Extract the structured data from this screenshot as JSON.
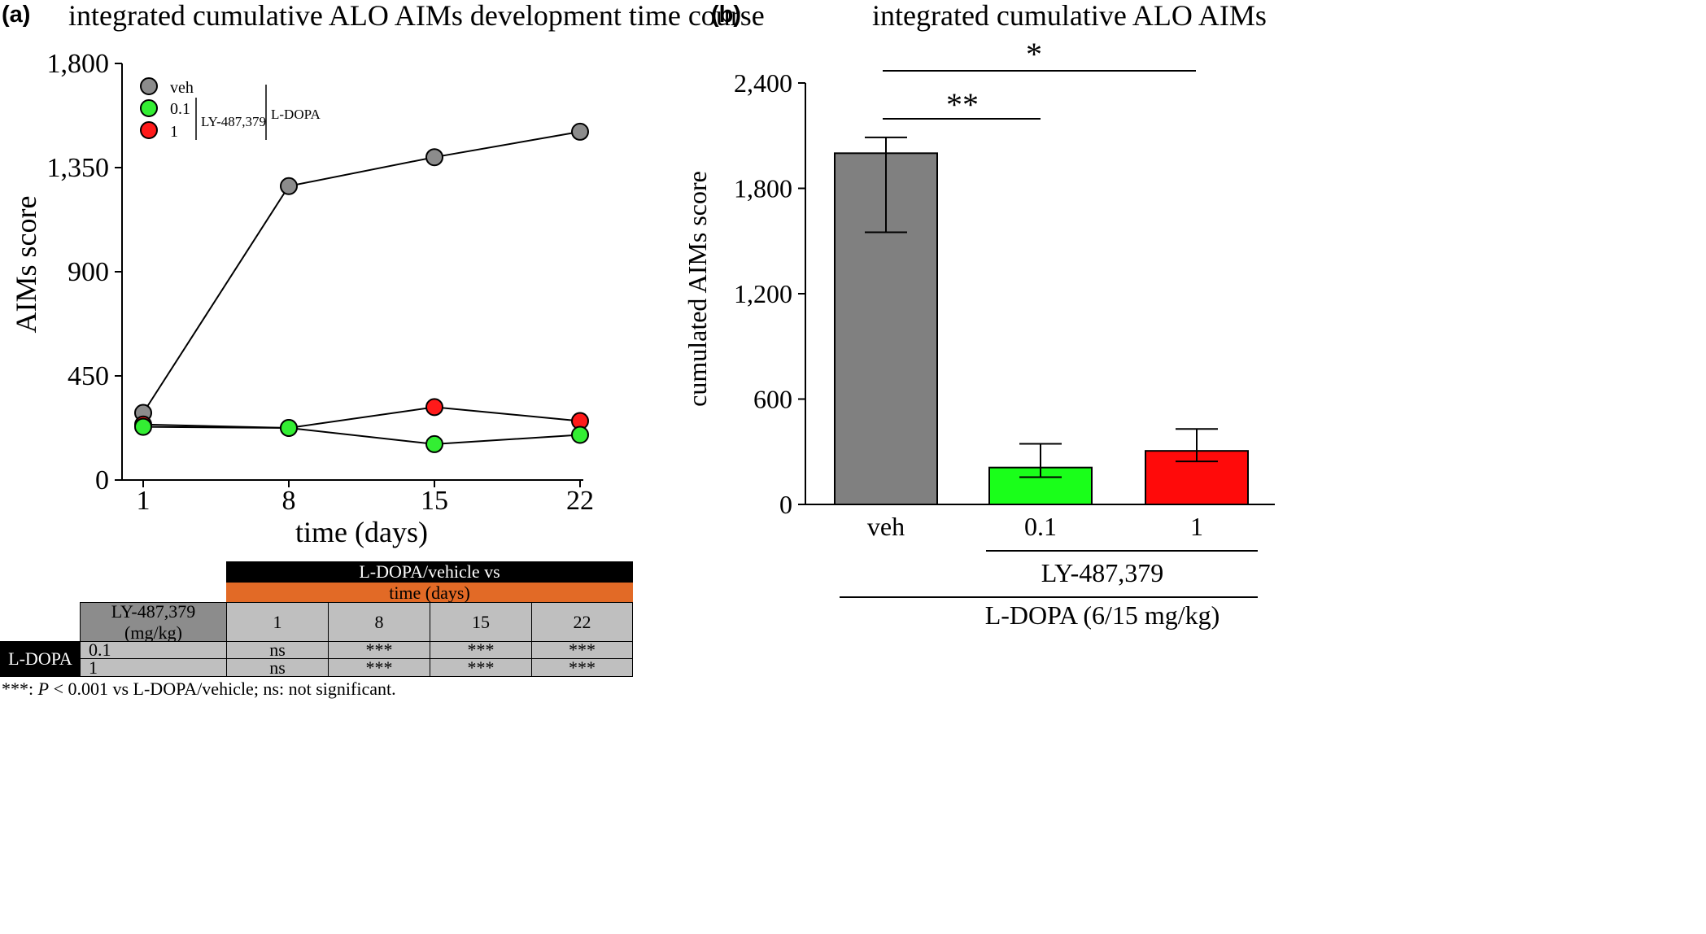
{
  "panel_a": {
    "label": "(a)",
    "title": "integrated cumulative ALO AIMs development time course",
    "legend_veh": "veh",
    "legend_01": "0.1",
    "legend_1": "1",
    "legend_drug": "LY-487,379",
    "legend_ldopa": "L-DOPA"
  },
  "panel_b": {
    "label": "(b)",
    "title": "integrated cumulative ALO AIMs",
    "sig_double": "**",
    "sig_single": "*",
    "group_drug": "LY-487,379",
    "group_ldopa": "L-DOPA (6/15 mg/kg)"
  },
  "table": {
    "header_top": "L-DOPA/vehicle vs",
    "header_sub": "time (days)",
    "col_drug": "LY-487,379\n(mg/kg)",
    "cols": [
      "1",
      "8",
      "15",
      "22"
    ],
    "side_label": "L-DOPA",
    "rows": [
      {
        "dose": "0.1",
        "values": [
          "ns",
          "***",
          "***",
          "***"
        ]
      },
      {
        "dose": "1",
        "values": [
          "ns",
          "***",
          "***",
          "***"
        ]
      }
    ],
    "footnote_stars": "***: ",
    "footnote_p": "P",
    "footnote_rest": " < 0.001 vs L-DOPA/vehicle; ns: not significant."
  },
  "chart_data": [
    {
      "type": "line",
      "title": "integrated cumulative ALO AIMs development time course",
      "xlabel": "time (days)",
      "ylabel": "AIMs score",
      "x": [
        1,
        8,
        15,
        22
      ],
      "xticks": [
        "1",
        "8",
        "15",
        "22"
      ],
      "yticks": [
        "0",
        "450",
        "900",
        "1,350",
        "1,800"
      ],
      "ylim": [
        0,
        1800
      ],
      "series": [
        {
          "name": "veh",
          "color": "#8c8c8c",
          "values": [
            290,
            1270,
            1395,
            1505
          ]
        },
        {
          "name": "1",
          "color": "#ff1a1a",
          "values": [
            240,
            225,
            315,
            255
          ]
        },
        {
          "name": "0.1",
          "color": "#33ee33",
          "values": [
            230,
            225,
            155,
            195
          ]
        }
      ],
      "legend": "top-left"
    },
    {
      "type": "bar",
      "title": "integrated cumulative ALO AIMs",
      "ylabel": "cumulated AIMs score",
      "categories": [
        "veh",
        "0.1",
        "1"
      ],
      "values": [
        2000,
        210,
        305
      ],
      "errors": [
        [
          1550,
          2090
        ],
        [
          155,
          345
        ],
        [
          245,
          430
        ]
      ],
      "colors": [
        "#808080",
        "#1aff1a",
        "#ff0a0a"
      ],
      "yticks": [
        "0",
        "600",
        "1,200",
        "1,800",
        "2,400"
      ],
      "ylim": [
        0,
        2400
      ],
      "significance": [
        {
          "from": "veh",
          "to": "0.1",
          "label": "**"
        },
        {
          "from": "veh",
          "to": "1",
          "label": "*"
        }
      ]
    }
  ]
}
